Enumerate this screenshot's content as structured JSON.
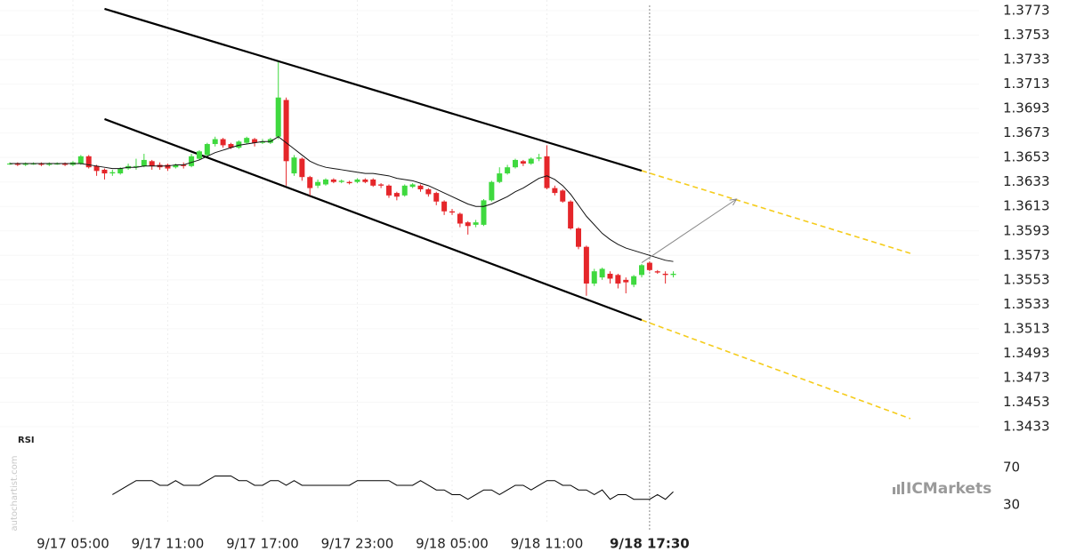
{
  "chart_data": {
    "type": "candlestick",
    "x": [
      "9/17 01:00",
      "9/17 01:30",
      "9/17 02:00",
      "9/17 02:30",
      "9/17 03:00",
      "9/17 03:30",
      "9/17 04:00",
      "9/17 04:30",
      "9/17 05:00",
      "9/17 05:30",
      "9/17 06:00",
      "9/17 06:30",
      "9/17 07:00",
      "9/17 07:30",
      "9/17 08:00",
      "9/17 08:30",
      "9/17 09:00",
      "9/17 09:30",
      "9/17 10:00",
      "9/17 10:30",
      "9/17 11:00",
      "9/17 11:30",
      "9/17 12:00",
      "9/17 12:30",
      "9/17 13:00",
      "9/17 13:30",
      "9/17 14:00",
      "9/17 14:30",
      "9/17 15:00",
      "9/17 15:30",
      "9/17 16:00",
      "9/17 16:30",
      "9/17 17:00",
      "9/17 17:30",
      "9/17 18:00",
      "9/17 18:30",
      "9/17 19:00",
      "9/17 19:30",
      "9/17 20:00",
      "9/17 20:30",
      "9/17 21:00",
      "9/17 21:30",
      "9/17 22:00",
      "9/17 22:30",
      "9/17 23:00",
      "9/17 23:30",
      "9/18 00:00",
      "9/18 00:30",
      "9/18 01:00",
      "9/18 01:30",
      "9/18 02:00",
      "9/18 02:30",
      "9/18 03:00",
      "9/18 03:30",
      "9/18 04:00",
      "9/18 04:30",
      "9/18 05:00",
      "9/18 05:30",
      "9/18 06:00",
      "9/18 06:30",
      "9/18 07:00",
      "9/18 07:30",
      "9/18 08:00",
      "9/18 08:30",
      "9/18 09:00",
      "9/18 09:30",
      "9/18 10:00",
      "9/18 10:30",
      "9/18 11:00",
      "9/18 11:30",
      "9/18 12:00",
      "9/18 12:30",
      "9/18 13:00",
      "9/18 13:30",
      "9/18 14:00",
      "9/18 14:30",
      "9/18 15:00",
      "9/18 15:30",
      "9/18 16:00",
      "9/18 16:30",
      "9/18 17:00",
      "9/18 17:30",
      "9/18 18:00",
      "9/18 18:30",
      "9/18 19:00"
    ],
    "open": [
      1.3648,
      1.3648,
      1.3647,
      1.3648,
      1.3648,
      1.3647,
      1.3648,
      1.3648,
      1.3647,
      1.3648,
      1.3654,
      1.3646,
      1.3643,
      1.364,
      1.364,
      1.3644,
      1.3646,
      1.3646,
      1.365,
      1.3647,
      1.3647,
      1.3645,
      1.3647,
      1.3646,
      1.3652,
      1.3655,
      1.3664,
      1.3668,
      1.3664,
      1.3661,
      1.3665,
      1.3668,
      1.3665,
      1.3665,
      1.367,
      1.37,
      1.364,
      1.3652,
      1.3637,
      1.363,
      1.3631,
      1.3635,
      1.3633,
      1.3633,
      1.3633,
      1.3635,
      1.3635,
      1.3631,
      1.363,
      1.3624,
      1.3622,
      1.3629,
      1.363,
      1.3627,
      1.3624,
      1.3617,
      1.3609,
      1.3607,
      1.36,
      1.3598,
      1.3598,
      1.3618,
      1.3633,
      1.364,
      1.3645,
      1.365,
      1.3648,
      1.3652,
      1.3654,
      1.3628,
      1.3626,
      1.3617,
      1.3595,
      1.358,
      1.355,
      1.3555,
      1.3558,
      1.3557,
      1.3553,
      1.3549,
      1.3557,
      1.3567,
      1.356,
      1.3558,
      1.3557
    ],
    "high": [
      1.3649,
      1.3649,
      1.3649,
      1.3649,
      1.3649,
      1.3649,
      1.3649,
      1.3649,
      1.365,
      1.3655,
      1.3655,
      1.3647,
      1.3644,
      1.3643,
      1.3645,
      1.3648,
      1.3652,
      1.3656,
      1.3651,
      1.3649,
      1.3648,
      1.3648,
      1.3649,
      1.3656,
      1.3659,
      1.3665,
      1.367,
      1.3669,
      1.3665,
      1.3667,
      1.367,
      1.3669,
      1.3668,
      1.3669,
      1.3731,
      1.3702,
      1.3655,
      1.3653,
      1.3638,
      1.3635,
      1.3636,
      1.3636,
      1.3635,
      1.3634,
      1.3636,
      1.3636,
      1.3636,
      1.3632,
      1.3631,
      1.3625,
      1.3631,
      1.3632,
      1.3631,
      1.3628,
      1.3625,
      1.3618,
      1.3611,
      1.3608,
      1.3601,
      1.3602,
      1.3619,
      1.3634,
      1.3645,
      1.3647,
      1.3652,
      1.3651,
      1.3653,
      1.3656,
      1.3663,
      1.363,
      1.3627,
      1.3618,
      1.3596,
      1.3581,
      1.3562,
      1.3563,
      1.356,
      1.3558,
      1.3555,
      1.3557,
      1.3566,
      1.3568,
      1.3561,
      1.356,
      1.356
    ],
    "low": [
      1.3647,
      1.3646,
      1.3646,
      1.3647,
      1.3646,
      1.3646,
      1.3647,
      1.3646,
      1.3646,
      1.3647,
      1.3644,
      1.3638,
      1.3635,
      1.3638,
      1.3639,
      1.3643,
      1.3643,
      1.3645,
      1.3643,
      1.3643,
      1.3642,
      1.3644,
      1.3644,
      1.3645,
      1.3651,
      1.3654,
      1.3662,
      1.3661,
      1.366,
      1.366,
      1.3664,
      1.3662,
      1.3664,
      1.3664,
      1.3668,
      1.363,
      1.3638,
      1.3634,
      1.3622,
      1.3628,
      1.363,
      1.3632,
      1.3632,
      1.3631,
      1.3632,
      1.3632,
      1.3629,
      1.3628,
      1.362,
      1.3618,
      1.3621,
      1.3628,
      1.3625,
      1.3621,
      1.3614,
      1.3606,
      1.3606,
      1.3596,
      1.359,
      1.3596,
      1.3597,
      1.3617,
      1.3632,
      1.3639,
      1.3644,
      1.3646,
      1.3647,
      1.365,
      1.3627,
      1.3622,
      1.3616,
      1.3594,
      1.3578,
      1.354,
      1.3548,
      1.3553,
      1.355,
      1.3546,
      1.3542,
      1.3547,
      1.3555,
      1.356,
      1.3558,
      1.355,
      1.3555
    ],
    "close": [
      1.3648,
      1.3647,
      1.3648,
      1.3648,
      1.3647,
      1.3648,
      1.3648,
      1.3647,
      1.3649,
      1.3654,
      1.3645,
      1.3642,
      1.364,
      1.3641,
      1.3644,
      1.3646,
      1.3646,
      1.3651,
      1.3646,
      1.3645,
      1.3644,
      1.3647,
      1.3646,
      1.3654,
      1.3658,
      1.3664,
      1.3668,
      1.3663,
      1.3661,
      1.3666,
      1.3669,
      1.3665,
      1.3666,
      1.3668,
      1.3702,
      1.365,
      1.3653,
      1.3637,
      1.3628,
      1.3633,
      1.3635,
      1.3633,
      1.3634,
      1.3632,
      1.3635,
      1.3633,
      1.363,
      1.363,
      1.3622,
      1.3621,
      1.363,
      1.3631,
      1.3627,
      1.3623,
      1.3617,
      1.3609,
      1.3608,
      1.3599,
      1.3597,
      1.36,
      1.3618,
      1.3633,
      1.364,
      1.3645,
      1.3651,
      1.3648,
      1.3652,
      1.3653,
      1.3628,
      1.3624,
      1.3617,
      1.3595,
      1.358,
      1.355,
      1.356,
      1.3562,
      1.3554,
      1.355,
      1.3551,
      1.3556,
      1.3565,
      1.3561,
      1.3559,
      1.3557,
      1.3558
    ],
    "up_color": "#3fd93f",
    "down_color": "#e5262a",
    "ma": [
      1.3648,
      1.3648,
      1.3648,
      1.3648,
      1.3648,
      1.3648,
      1.3648,
      1.3648,
      1.3648,
      1.3648,
      1.3647,
      1.3646,
      1.3645,
      1.3644,
      1.3644,
      1.3645,
      1.3645,
      1.3646,
      1.3646,
      1.3646,
      1.3646,
      1.3647,
      1.3647,
      1.3649,
      1.3651,
      1.3654,
      1.3657,
      1.3659,
      1.3661,
      1.3663,
      1.3664,
      1.3665,
      1.3666,
      1.3666,
      1.367,
      1.3665,
      1.366,
      1.3655,
      1.365,
      1.3647,
      1.3645,
      1.3644,
      1.3643,
      1.3642,
      1.3641,
      1.364,
      1.364,
      1.3639,
      1.3638,
      1.3636,
      1.3635,
      1.3634,
      1.3632,
      1.363,
      1.3627,
      1.3624,
      1.3621,
      1.3618,
      1.3615,
      1.3613,
      1.3613,
      1.3615,
      1.3618,
      1.3621,
      1.3625,
      1.3628,
      1.3632,
      1.3636,
      1.3638,
      1.3635,
      1.363,
      1.3623,
      1.3614,
      1.3605,
      1.3598,
      1.3591,
      1.3586,
      1.3582,
      1.3579,
      1.3577,
      1.3575,
      1.3573,
      1.3571,
      1.3569,
      1.3568
    ],
    "ma_color": "#111111",
    "rsi_label": "RSI",
    "rsi": [
      null,
      null,
      null,
      null,
      null,
      null,
      null,
      null,
      null,
      null,
      null,
      null,
      null,
      41,
      46,
      51,
      56,
      56,
      56,
      51,
      51,
      56,
      51,
      51,
      51,
      56,
      61,
      61,
      61,
      56,
      56,
      51,
      51,
      56,
      56,
      51,
      56,
      51,
      51,
      51,
      51,
      51,
      51,
      51,
      56,
      56,
      56,
      56,
      56,
      51,
      51,
      51,
      56,
      51,
      46,
      46,
      41,
      41,
      36,
      41,
      46,
      46,
      41,
      46,
      51,
      51,
      46,
      51,
      56,
      56,
      51,
      51,
      46,
      46,
      41,
      46,
      36,
      41,
      41,
      36,
      36,
      36,
      41,
      36,
      44
    ],
    "rsi_ylim": [
      10,
      100
    ],
    "rsi_yticks": [
      70,
      30
    ],
    "trend_lines": [
      {
        "x": [
          "9/17 07:00",
          "9/18 17:00"
        ],
        "y": [
          1.37745,
          1.36422
        ],
        "color": "#000000",
        "dashed": false
      },
      {
        "x": [
          "9/17 07:00",
          "9/18 17:00"
        ],
        "y": [
          1.36844,
          1.35202
        ],
        "color": "#000000",
        "dashed": false
      },
      {
        "x": [
          "9/18 17:00",
          "9/19 10:00"
        ],
        "y": [
          1.36422,
          1.35747
        ],
        "color": "#f5cc1b",
        "dashed": true
      },
      {
        "x": [
          "9/18 17:00",
          "9/19 10:00"
        ],
        "y": [
          1.35202,
          1.34396
        ],
        "color": "#f5cc1b",
        "dashed": true
      }
    ],
    "arrow": {
      "x": [
        "9/18 17:00",
        "9/18 23:00"
      ],
      "y": [
        1.3567,
        1.3619
      ],
      "color": "#888888"
    },
    "xlim": [
      "9/17 00:23",
      "9/19 14:21"
    ],
    "xticks": [
      "9/17 05:00",
      "9/17 11:00",
      "9/17 17:00",
      "9/17 23:00",
      "9/18 05:00",
      "9/18 11:00"
    ],
    "current_time": "9/18 17:30",
    "ylim": [
      1.34294,
      1.37817
    ],
    "yticks": [
      1.3773,
      1.3753,
      1.3733,
      1.3713,
      1.3693,
      1.3673,
      1.3653,
      1.3633,
      1.3613,
      1.3593,
      1.3573,
      1.3553,
      1.3533,
      1.3513,
      1.3493,
      1.3473,
      1.3453,
      1.3433
    ],
    "grid": true,
    "watermark": "autochartist.com",
    "brand": "ICMarkets"
  }
}
